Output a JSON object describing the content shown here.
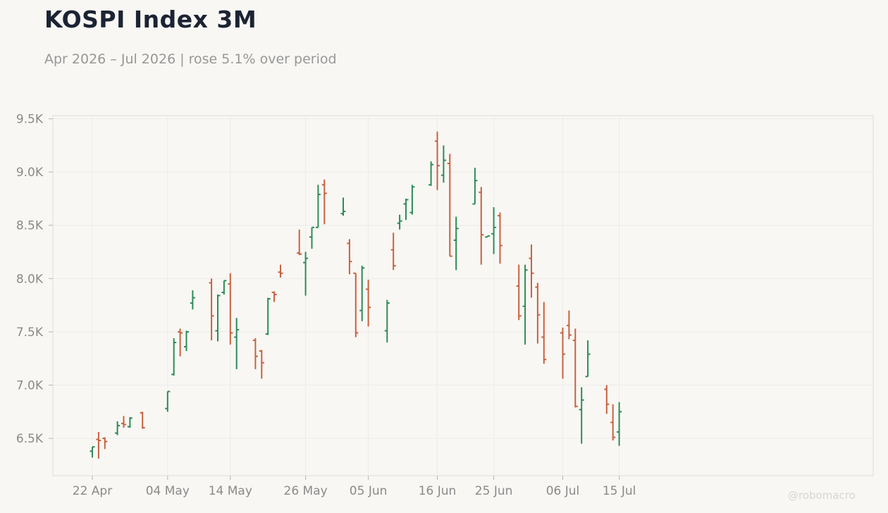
{
  "title": "KOSPI Index 3M",
  "subtitle": "Apr 2026 – Jul 2026 | rose 5.1% over period",
  "watermark": "@robomacro",
  "colors": {
    "up": "#2e8b57",
    "down": "#c8613f",
    "grid": "#ececec",
    "tick_label": "#8a8a8a",
    "background": "#f8f7f4"
  },
  "chart_data": {
    "type": "ohlc",
    "title": "KOSPI Index 3M",
    "subtitle": "Apr 2026 – Jul 2026 | rose 5.1% over period",
    "x_ticks": [
      "22 Apr",
      "04 May",
      "14 May",
      "26 May",
      "05 Jun",
      "16 Jun",
      "25 Jun",
      "06 Jul",
      "15 Jul"
    ],
    "y_ticks": [
      "6.5K",
      "7.0K",
      "7.5K",
      "8.0K",
      "8.5K",
      "9.0K",
      "9.5K"
    ],
    "y_tick_values": [
      6500,
      7000,
      7500,
      8000,
      8500,
      9000,
      9500
    ],
    "ylim": [
      6150,
      9530
    ],
    "grid": true,
    "bars": [
      {
        "date": "22 Apr",
        "open": 6380,
        "high": 6420,
        "low": 6320,
        "close": 6420
      },
      {
        "date": "23 Apr",
        "open": 6490,
        "high": 6560,
        "low": 6310,
        "close": 6480
      },
      {
        "date": "24 Apr",
        "open": 6500,
        "high": 6510,
        "low": 6400,
        "close": 6470
      },
      {
        "date": "26 Apr",
        "open": 6550,
        "high": 6660,
        "low": 6530,
        "close": 6620
      },
      {
        "date": "27 Apr",
        "open": 6640,
        "high": 6710,
        "low": 6600,
        "close": 6630
      },
      {
        "date": "28 Apr",
        "open": 6610,
        "high": 6700,
        "low": 6600,
        "close": 6690
      },
      {
        "date": "30 Apr",
        "open": 6740,
        "high": 6750,
        "low": 6590,
        "close": 6600
      },
      {
        "date": "04 May",
        "open": 6780,
        "high": 6940,
        "low": 6750,
        "close": 6940
      },
      {
        "date": "05 May",
        "open": 7100,
        "high": 7440,
        "low": 7090,
        "close": 7400
      },
      {
        "date": "06 May",
        "open": 7500,
        "high": 7530,
        "low": 7270,
        "close": 7490
      },
      {
        "date": "07 May",
        "open": 7360,
        "high": 7510,
        "low": 7320,
        "close": 7500
      },
      {
        "date": "08 May",
        "open": 7770,
        "high": 7890,
        "low": 7710,
        "close": 7820
      },
      {
        "date": "11 May",
        "open": 7960,
        "high": 8000,
        "low": 7420,
        "close": 7650
      },
      {
        "date": "12 May",
        "open": 7510,
        "high": 7850,
        "low": 7410,
        "close": 7840
      },
      {
        "date": "13 May",
        "open": 7870,
        "high": 7980,
        "low": 7850,
        "close": 7980
      },
      {
        "date": "14 May",
        "open": 7950,
        "high": 8050,
        "low": 7380,
        "close": 7490
      },
      {
        "date": "15 May",
        "open": 7450,
        "high": 7630,
        "low": 7150,
        "close": 7520
      },
      {
        "date": "18 May",
        "open": 7420,
        "high": 7440,
        "low": 7150,
        "close": 7270
      },
      {
        "date": "19 May",
        "open": 7320,
        "high": 7330,
        "low": 7060,
        "close": 7210
      },
      {
        "date": "20 May",
        "open": 7480,
        "high": 7820,
        "low": 7470,
        "close": 7810
      },
      {
        "date": "21 May",
        "open": 7870,
        "high": 7880,
        "low": 7780,
        "close": 7850
      },
      {
        "date": "22 May",
        "open": 8060,
        "high": 8130,
        "low": 8010,
        "close": 8050
      },
      {
        "date": "25 May",
        "open": 8240,
        "high": 8460,
        "low": 8220,
        "close": 8230
      },
      {
        "date": "26 May",
        "open": 8150,
        "high": 8250,
        "low": 7840,
        "close": 8190
      },
      {
        "date": "27 May",
        "open": 8390,
        "high": 8480,
        "low": 8280,
        "close": 8480
      },
      {
        "date": "28 May",
        "open": 8480,
        "high": 8880,
        "low": 8480,
        "close": 8790
      },
      {
        "date": "29 May",
        "open": 8880,
        "high": 8930,
        "low": 8510,
        "close": 8800
      },
      {
        "date": "01 Jun",
        "open": 8610,
        "high": 8760,
        "low": 8590,
        "close": 8630
      },
      {
        "date": "02 Jun",
        "open": 8330,
        "high": 8370,
        "low": 8040,
        "close": 8160
      },
      {
        "date": "03 Jun",
        "open": 8050,
        "high": 8050,
        "low": 7450,
        "close": 7490
      },
      {
        "date": "04 Jun",
        "open": 7700,
        "high": 8120,
        "low": 7600,
        "close": 8100
      },
      {
        "date": "05 Jun",
        "open": 7900,
        "high": 7990,
        "low": 7550,
        "close": 7730
      },
      {
        "date": "08 Jun",
        "open": 7510,
        "high": 7800,
        "low": 7400,
        "close": 7770
      },
      {
        "date": "09 Jun",
        "open": 8270,
        "high": 8430,
        "low": 8080,
        "close": 8120
      },
      {
        "date": "10 Jun",
        "open": 8520,
        "high": 8600,
        "low": 8460,
        "close": 8540
      },
      {
        "date": "11 Jun",
        "open": 8700,
        "high": 8750,
        "low": 8550,
        "close": 8740
      },
      {
        "date": "12 Jun",
        "open": 8620,
        "high": 8880,
        "low": 8600,
        "close": 8860
      },
      {
        "date": "15 Jun",
        "open": 8880,
        "high": 9100,
        "low": 8870,
        "close": 9070
      },
      {
        "date": "16 Jun",
        "open": 9290,
        "high": 9380,
        "low": 8830,
        "close": 9060
      },
      {
        "date": "17 Jun",
        "open": 8970,
        "high": 9250,
        "low": 8900,
        "close": 9110
      },
      {
        "date": "18 Jun",
        "open": 9080,
        "high": 9170,
        "low": 8210,
        "close": 8210
      },
      {
        "date": "19 Jun",
        "open": 8360,
        "high": 8580,
        "low": 8080,
        "close": 8470
      },
      {
        "date": "22 Jun",
        "open": 8700,
        "high": 9040,
        "low": 8700,
        "close": 8920
      },
      {
        "date": "23 Jun",
        "open": 8810,
        "high": 8860,
        "low": 8130,
        "close": 8410
      },
      {
        "date": "24 Jun",
        "open": 8390,
        "high": 8400,
        "low": 8390,
        "close": 8400
      },
      {
        "date": "25 Jun",
        "open": 8420,
        "high": 8670,
        "low": 8230,
        "close": 8480
      },
      {
        "date": "26 Jun",
        "open": 8590,
        "high": 8620,
        "low": 8140,
        "close": 8310
      },
      {
        "date": "29 Jun",
        "open": 7930,
        "high": 8130,
        "low": 7610,
        "close": 7650
      },
      {
        "date": "30 Jun",
        "open": 7740,
        "high": 8130,
        "low": 7380,
        "close": 8080
      },
      {
        "date": "01 Jul",
        "open": 8190,
        "high": 8320,
        "low": 7820,
        "close": 8050
      },
      {
        "date": "02 Jul",
        "open": 7920,
        "high": 7960,
        "low": 7390,
        "close": 7660
      },
      {
        "date": "03 Jul",
        "open": 7450,
        "high": 7780,
        "low": 7200,
        "close": 7240
      },
      {
        "date": "06 Jul",
        "open": 7490,
        "high": 7540,
        "low": 7060,
        "close": 7290
      },
      {
        "date": "07 Jul",
        "open": 7560,
        "high": 7700,
        "low": 7430,
        "close": 7470
      },
      {
        "date": "08 Jul",
        "open": 7420,
        "high": 7530,
        "low": 6790,
        "close": 6800
      },
      {
        "date": "09 Jul",
        "open": 6770,
        "high": 6980,
        "low": 6450,
        "close": 6860
      },
      {
        "date": "10 Jul",
        "open": 7080,
        "high": 7420,
        "low": 7080,
        "close": 7290
      },
      {
        "date": "13 Jul",
        "open": 6960,
        "high": 7000,
        "low": 6730,
        "close": 6820
      },
      {
        "date": "14 Jul",
        "open": 6650,
        "high": 6820,
        "low": 6480,
        "close": 6510
      },
      {
        "date": "15 Jul",
        "open": 6560,
        "high": 6840,
        "low": 6430,
        "close": 6750
      }
    ]
  }
}
